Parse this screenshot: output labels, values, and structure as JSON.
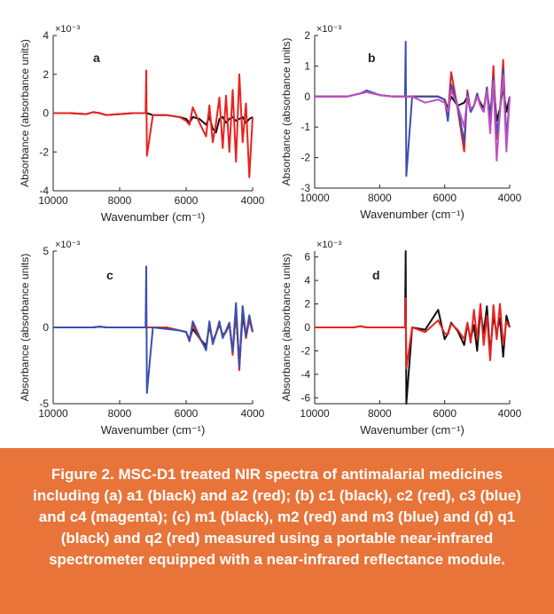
{
  "chart_data": [
    {
      "type": "line",
      "annotation": "a",
      "exponent_label": "×10⁻³",
      "x_label": "Wavenumber (cm⁻¹)",
      "y_label": "Absorbance (absorbance units)",
      "x": [
        10000,
        9500,
        9000,
        8800,
        8600,
        8400,
        8000,
        7600,
        7220,
        7200,
        7180,
        7000,
        6600,
        6200,
        6000,
        5900,
        5800,
        5600,
        5400,
        5300,
        5200,
        5100,
        5000,
        4900,
        4800,
        4700,
        4600,
        4500,
        4400,
        4300,
        4200,
        4100,
        4000
      ],
      "xlim": [
        10000,
        4000
      ],
      "xticks": [
        10000,
        8000,
        6000,
        4000
      ],
      "ylim": [
        -4,
        4
      ],
      "yticks": [
        -4,
        -2,
        0,
        2,
        4
      ],
      "series": [
        {
          "name": "a1",
          "color": "#111111",
          "values": [
            0,
            0,
            -0.05,
            0.05,
            0,
            -0.1,
            -0.05,
            0,
            0,
            0,
            0,
            -0.1,
            -0.1,
            -0.2,
            -0.3,
            -0.5,
            -0.2,
            -0.3,
            -0.6,
            -0.2,
            -0.8,
            -1.0,
            -0.3,
            -0.2,
            -0.5,
            -0.3,
            -0.2,
            -0.4,
            -0.3,
            -0.2,
            -0.5,
            -0.3,
            -0.2
          ]
        },
        {
          "name": "a2",
          "color": "#e8231f",
          "values": [
            0,
            0,
            -0.05,
            0.05,
            0,
            -0.1,
            -0.05,
            0,
            0,
            2.2,
            -2.2,
            -0.1,
            -0.1,
            -0.2,
            -0.4,
            -0.6,
            0.3,
            -0.5,
            -1.2,
            0.4,
            -1.5,
            -0.5,
            0.8,
            -1.8,
            0.9,
            -2.0,
            1.2,
            -2.5,
            2.0,
            -1.5,
            0.5,
            -3.3,
            -0.2
          ]
        }
      ]
    },
    {
      "type": "line",
      "annotation": "b",
      "exponent_label": "×10⁻³",
      "x_label": "Wavenumber (cm⁻¹)",
      "y_label": "Absorbance (absorbance units)",
      "x": [
        10000,
        9500,
        9000,
        8800,
        8600,
        8400,
        8000,
        7600,
        7220,
        7200,
        7180,
        7000,
        6600,
        6200,
        6000,
        5900,
        5800,
        5600,
        5400,
        5300,
        5200,
        5100,
        5000,
        4900,
        4800,
        4700,
        4600,
        4500,
        4400,
        4300,
        4200,
        4100,
        4000
      ],
      "xlim": [
        10000,
        4000
      ],
      "xticks": [
        10000,
        8000,
        6000,
        4000
      ],
      "ylim": [
        -3,
        2
      ],
      "yticks": [
        -3,
        -2,
        -1,
        0,
        1,
        2
      ],
      "series": [
        {
          "name": "c1",
          "color": "#111111",
          "values": [
            0,
            0,
            0,
            0.05,
            0.1,
            0.15,
            0.05,
            0,
            0,
            0,
            0,
            0,
            0,
            0,
            -0.1,
            -0.4,
            0,
            -0.3,
            -0.2,
            0,
            -0.5,
            -0.3,
            0,
            -0.2,
            -0.4,
            0.2,
            -0.6,
            0.5,
            -0.8,
            -0.4,
            0.3,
            -0.5,
            0
          ]
        },
        {
          "name": "c2",
          "color": "#e8231f",
          "values": [
            0,
            0,
            0,
            0.05,
            0.1,
            0.15,
            0.05,
            0,
            0,
            0,
            0,
            0,
            0,
            0,
            -0.1,
            -0.6,
            0.8,
            -0.4,
            -1.8,
            0.2,
            -0.5,
            -0.3,
            0.1,
            -0.3,
            -0.5,
            0.3,
            -1.0,
            1.0,
            -1.4,
            -0.5,
            1.2,
            -1.6,
            0
          ]
        },
        {
          "name": "c3",
          "color": "#3a4fb0",
          "values": [
            0,
            0,
            0,
            0.05,
            0.1,
            0.2,
            0.05,
            0,
            0,
            1.8,
            -2.6,
            0,
            0,
            0,
            -0.1,
            -0.8,
            0.4,
            -0.3,
            -1.5,
            0.1,
            -0.5,
            -0.3,
            0.1,
            -0.3,
            -0.5,
            0.3,
            -0.8,
            0.6,
            -1.2,
            -0.5,
            0.9,
            -1.4,
            0
          ]
        },
        {
          "name": "c4",
          "color": "#c050c0",
          "values": [
            0,
            0,
            0,
            0.05,
            0.1,
            0.15,
            0.05,
            0,
            0,
            0,
            0,
            0,
            -0.2,
            -0.1,
            -0.2,
            -0.5,
            0.2,
            -0.3,
            -1.0,
            0,
            -0.4,
            -0.3,
            0,
            -0.3,
            -0.5,
            0.2,
            -1.2,
            0.5,
            -2.1,
            -0.5,
            0.7,
            -1.8,
            0
          ]
        }
      ]
    },
    {
      "type": "line",
      "annotation": "c",
      "exponent_label": "×10⁻³",
      "x_label": "Wavenumber (cm⁻¹)",
      "y_label": "Absorbance (absorbance units)",
      "x": [
        10000,
        9500,
        9000,
        8800,
        8600,
        8400,
        8000,
        7600,
        7220,
        7200,
        7180,
        7000,
        6600,
        6200,
        6000,
        5900,
        5800,
        5600,
        5400,
        5300,
        5200,
        5100,
        5000,
        4900,
        4800,
        4700,
        4600,
        4500,
        4400,
        4300,
        4200,
        4100,
        4000
      ],
      "xlim": [
        10000,
        4000
      ],
      "xticks": [
        10000,
        8000,
        6000,
        4000
      ],
      "ylim": [
        -5,
        5
      ],
      "yticks": [
        -5,
        0,
        5
      ],
      "series": [
        {
          "name": "m1",
          "color": "#111111",
          "values": [
            0,
            0,
            0,
            0,
            0.05,
            0,
            0,
            0,
            0,
            0,
            0,
            0,
            0,
            -0.2,
            -0.3,
            -0.8,
            -0.1,
            -0.7,
            -1.2,
            0.1,
            -0.9,
            -0.4,
            0.2,
            -0.5,
            -0.3,
            0.2,
            -1.6,
            1.0,
            -2.5,
            0.8,
            -0.6,
            0.7,
            -0.3
          ]
        },
        {
          "name": "m2",
          "color": "#e8231f",
          "values": [
            0,
            0,
            0,
            0,
            0.05,
            0,
            0,
            0,
            0,
            0,
            0,
            0,
            0,
            -0.2,
            -0.3,
            -0.9,
            0.2,
            -0.7,
            -1.4,
            0.3,
            -1.0,
            -0.4,
            0.3,
            -0.6,
            -0.3,
            0.3,
            -1.8,
            1.2,
            -2.8,
            1.3,
            -0.7,
            0.5,
            -0.3
          ]
        },
        {
          "name": "m3",
          "color": "#3a4fb0",
          "values": [
            0,
            0,
            0,
            0,
            0.05,
            0,
            0,
            0,
            0,
            4.0,
            -4.3,
            0,
            -0.1,
            -0.2,
            -0.3,
            -0.9,
            0.4,
            -0.6,
            -1.5,
            0.4,
            -1.1,
            -0.4,
            0.4,
            -0.7,
            -0.2,
            0.3,
            -1.6,
            1.6,
            -2.6,
            1.4,
            -0.6,
            0.8,
            -0.3
          ]
        }
      ]
    },
    {
      "type": "line",
      "annotation": "d",
      "exponent_label": "×10⁻³",
      "x_label": "Wavenumber (cm⁻¹)",
      "y_label": "Absorbance (absorbance units)",
      "x": [
        10000,
        9500,
        9000,
        8800,
        8600,
        8400,
        8000,
        7600,
        7220,
        7200,
        7180,
        7000,
        6600,
        6200,
        6000,
        5900,
        5800,
        5600,
        5400,
        5300,
        5200,
        5100,
        5000,
        4900,
        4800,
        4700,
        4600,
        4500,
        4400,
        4300,
        4200,
        4100,
        4000
      ],
      "xlim": [
        10000,
        4000
      ],
      "xticks": [
        10000,
        8000,
        6000,
        4000
      ],
      "ylim": [
        -6.5,
        6.5
      ],
      "yticks": [
        -6,
        -4,
        -2,
        0,
        2,
        4,
        6
      ],
      "series": [
        {
          "name": "q1",
          "color": "#111111",
          "values": [
            0,
            0,
            0,
            0,
            0.1,
            0,
            0,
            0,
            0,
            6.5,
            -6.5,
            0,
            -0.2,
            1.5,
            -1.0,
            -0.5,
            0.4,
            -0.3,
            -1.5,
            0.3,
            -1.0,
            0.2,
            -2.0,
            1.5,
            -0.5,
            1.8,
            -2.3,
            1.0,
            -0.5,
            0.8,
            -2.5,
            1.0,
            0
          ]
        },
        {
          "name": "q2",
          "color": "#e8231f",
          "values": [
            0,
            0,
            0,
            0,
            0.1,
            0,
            0,
            0,
            0,
            2.5,
            -3.5,
            0,
            -0.4,
            0.6,
            -0.5,
            -0.6,
            0.3,
            -0.2,
            -1.0,
            0.4,
            -1.3,
            1.5,
            -1.0,
            2.0,
            -1.5,
            1.0,
            -2.8,
            1.9,
            -1.0,
            2.0,
            -1.5,
            0.5,
            0
          ]
        }
      ]
    }
  ],
  "caption": "Figure 2. MSC-D1 treated NIR spectra of antimalarial medicines including (a) a1 (black) and a2 (red); (b) c1 (black), c2 (red), c3 (blue) and c4 (magenta); (c) m1 (black), m2 (red) and m3 (blue) and (d) q1 (black) and q2 (red) measured using a portable near-infrared spectrometer equipped with a near-infrared reflectance module."
}
